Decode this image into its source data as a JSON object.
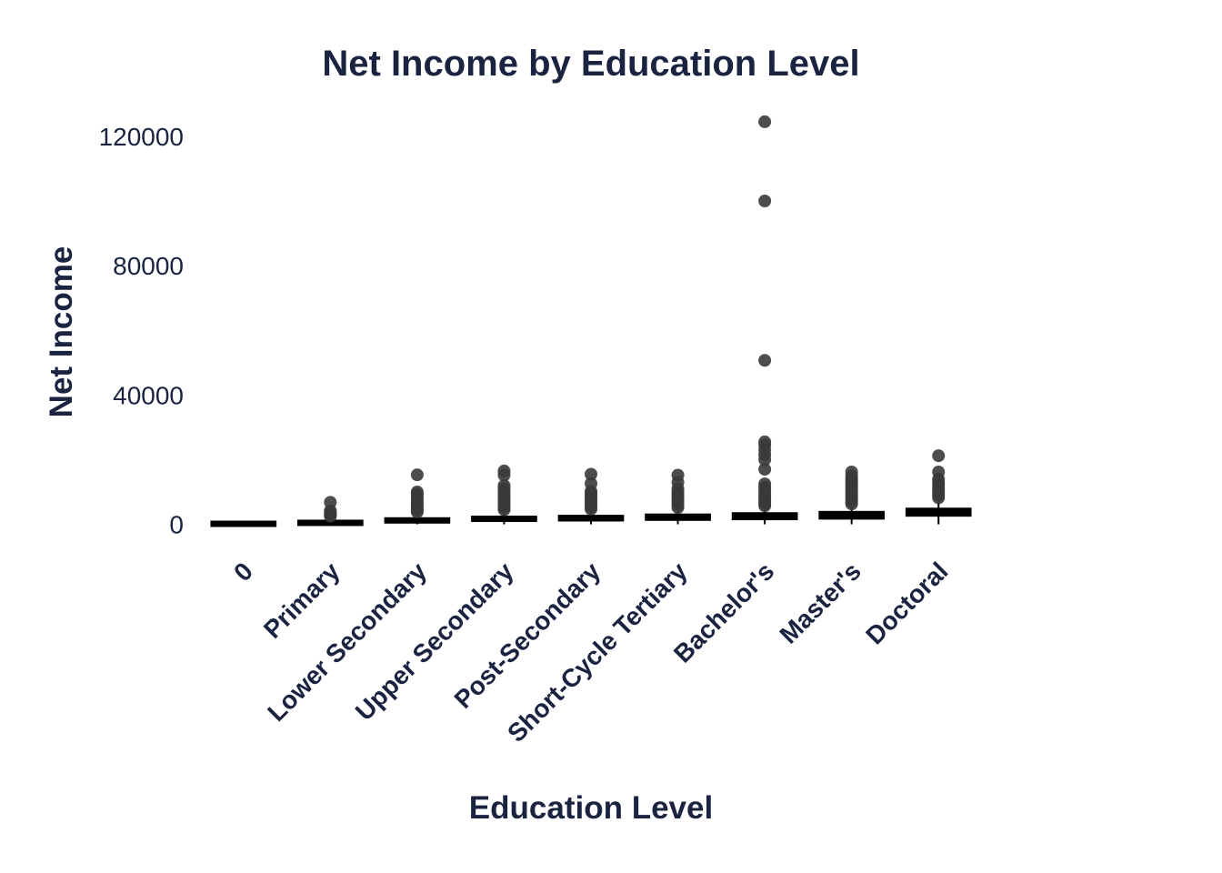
{
  "chart_data": {
    "type": "box",
    "title": "Net Income by Education Level",
    "xlabel": "Education Level",
    "ylabel": "Net Income",
    "ylim": [
      -8000,
      127000
    ],
    "yticks": [
      0,
      40000,
      80000,
      120000
    ],
    "ytick_labels": [
      "0",
      "40000",
      "80000",
      "120000"
    ],
    "grid": false,
    "legend": "none",
    "categories": [
      "0",
      "Primary",
      "Lower Secondary",
      "Upper Secondary",
      "Post-Secondary",
      "Short-Cycle Tertiary",
      "Bachelor's",
      "Master's",
      "Doctoral"
    ],
    "boxes": [
      {
        "category": "0",
        "q1": 0,
        "median": 100,
        "q3": 300,
        "whisker_low": 0,
        "whisker_high": 500,
        "outliers": []
      },
      {
        "category": "Primary",
        "q1": 0,
        "median": 300,
        "q3": 900,
        "whisker_low": 0,
        "whisker_high": 1800,
        "outliers": [
          2500,
          2900,
          3300,
          3700,
          4200,
          6800
        ]
      },
      {
        "category": "Lower Secondary",
        "q1": 500,
        "median": 1000,
        "q3": 1900,
        "whisker_low": 0,
        "whisker_high": 3300,
        "outliers": [
          3800,
          4300,
          4900,
          5500,
          6200,
          7000,
          7800,
          8600,
          9400,
          10000,
          15300
        ]
      },
      {
        "category": "Upper Secondary",
        "q1": 900,
        "median": 1400,
        "q3": 2500,
        "whisker_low": 0,
        "whisker_high": 4000,
        "outliers": [
          4500,
          5200,
          6000,
          6800,
          7600,
          8400,
          9200,
          10000,
          11000,
          12000,
          15200,
          16500
        ]
      },
      {
        "category": "Post-Secondary",
        "q1": 1000,
        "median": 1700,
        "q3": 2800,
        "whisker_low": 0,
        "whisker_high": 4200,
        "outliers": [
          4700,
          5400,
          6200,
          7000,
          7800,
          8600,
          9400,
          10200,
          12600,
          15500
        ]
      },
      {
        "category": "Short-Cycle Tertiary",
        "q1": 1200,
        "median": 2000,
        "q3": 3200,
        "whisker_low": 0,
        "whisker_high": 4800,
        "outliers": [
          5200,
          6000,
          6800,
          7600,
          8400,
          9200,
          10000,
          11000,
          13000,
          15200
        ]
      },
      {
        "category": "Bachelor's",
        "q1": 1400,
        "median": 2300,
        "q3": 3600,
        "whisker_low": 0,
        "whisker_high": 5200,
        "outliers": [
          5700,
          6400,
          7200,
          8000,
          8800,
          9600,
          10500,
          11500,
          12500,
          17000,
          20000,
          21500,
          23000,
          24500,
          25500,
          50700,
          100000,
          124500
        ]
      },
      {
        "category": "Master's",
        "q1": 1600,
        "median": 2600,
        "q3": 4000,
        "whisker_low": 0,
        "whisker_high": 5800,
        "outliers": [
          6300,
          7000,
          7800,
          8600,
          9400,
          10200,
          11000,
          11800,
          12600,
          13400,
          14200,
          15000,
          16200
        ]
      },
      {
        "category": "Doctoral",
        "q1": 2500,
        "median": 3400,
        "q3": 5000,
        "whisker_low": 0,
        "whisker_high": 7500,
        "outliers": [
          8200,
          9000,
          9800,
          10600,
          11400,
          12200,
          13000,
          14000,
          16200,
          21200
        ]
      }
    ]
  },
  "colors": {
    "text": "#1a2340",
    "box": "#000000",
    "outlier": "#3a3a3a"
  }
}
